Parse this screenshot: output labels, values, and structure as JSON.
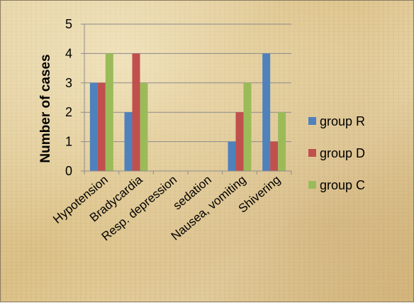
{
  "chart_data": {
    "type": "bar",
    "title": "",
    "xlabel": "",
    "ylabel": "Number of cases",
    "ylim": [
      0,
      5
    ],
    "yticks": [
      0,
      1,
      2,
      3,
      4,
      5
    ],
    "grid": true,
    "legend_position": "right",
    "categories": [
      "Hypotension",
      "Bradycardia",
      "Resp. depression",
      "sedation",
      "Nausea, vomiting",
      "Shivering"
    ],
    "series": [
      {
        "name": "group R",
        "color": "#4f81bd",
        "values": [
          3,
          2,
          0,
          0,
          1,
          4
        ]
      },
      {
        "name": "group D",
        "color": "#c0504d",
        "values": [
          3,
          4,
          0,
          0,
          2,
          1
        ]
      },
      {
        "name": "group C",
        "color": "#9bbb59",
        "values": [
          4,
          3,
          0,
          0,
          3,
          2
        ]
      }
    ]
  }
}
